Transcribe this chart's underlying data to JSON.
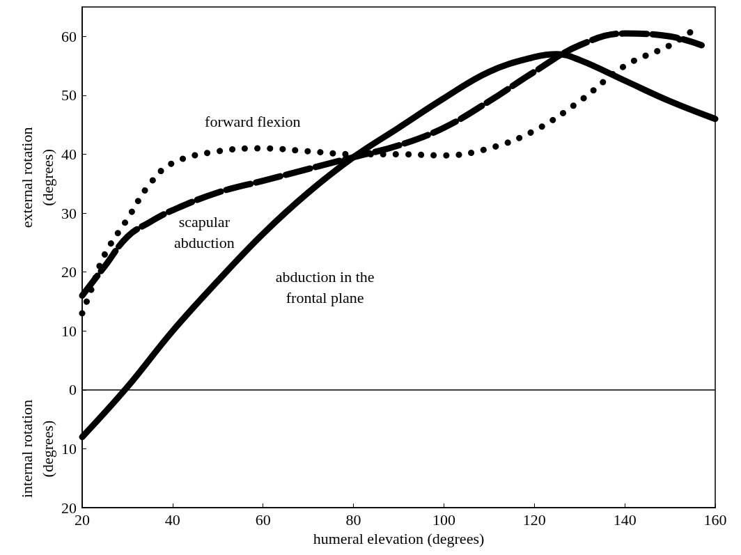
{
  "chart_data": {
    "type": "line",
    "xlabel": "humeral elevation (degrees)",
    "ylabel": "external rotation\n(degrees)",
    "xlim": [
      20,
      160
    ],
    "xticks": [
      20,
      40,
      60,
      80,
      100,
      120,
      140,
      160
    ],
    "ylim": [
      -20,
      65
    ],
    "yticks": [
      {
        "value": -20,
        "label": "20"
      },
      {
        "value": -10,
        "label": "10"
      },
      0,
      10,
      20,
      30,
      40,
      50,
      60
    ],
    "grid": false,
    "legend": false,
    "marker": "none",
    "ref_lines": [
      {
        "axis": "y",
        "value": 0,
        "color": "#000000",
        "line_style": "solid"
      }
    ],
    "series": [
      {
        "name": "abduction in the\nfrontal plane",
        "color": "#000000",
        "line_style": "solid",
        "x": [
          20,
          30,
          40,
          50,
          60,
          70,
          80,
          90,
          100,
          110,
          120,
          125,
          130,
          140,
          150,
          160
        ],
        "values": [
          -8,
          0.5,
          10,
          18.5,
          26.5,
          33.5,
          39.5,
          44.5,
          49.5,
          54,
          56.5,
          57,
          56,
          52.5,
          49,
          46
        ]
      },
      {
        "name": "scapular\nabduction",
        "color": "#000000",
        "line_style": "dashed",
        "x": [
          20,
          25,
          30,
          35,
          40,
          50,
          60,
          70,
          80,
          90,
          100,
          110,
          120,
          130,
          140,
          150,
          157
        ],
        "values": [
          16,
          21,
          26,
          28.5,
          30.5,
          33.5,
          35.5,
          37.5,
          39.5,
          41.5,
          44.5,
          49,
          54,
          58.5,
          60.5,
          60,
          58.5
        ]
      },
      {
        "name": "forward flexion",
        "color": "#000000",
        "line_style": "dotted",
        "x": [
          20,
          22,
          25,
          30,
          35,
          40,
          50,
          60,
          70,
          80,
          90,
          100,
          110,
          120,
          130,
          140,
          150,
          155
        ],
        "values": [
          13,
          17,
          23,
          29,
          35,
          38.5,
          40.5,
          41,
          40.5,
          40,
          40,
          39.8,
          41,
          44,
          49,
          55,
          58.5,
          61
        ]
      }
    ],
    "annotations": [
      "internal rotation\n(degrees)"
    ]
  }
}
